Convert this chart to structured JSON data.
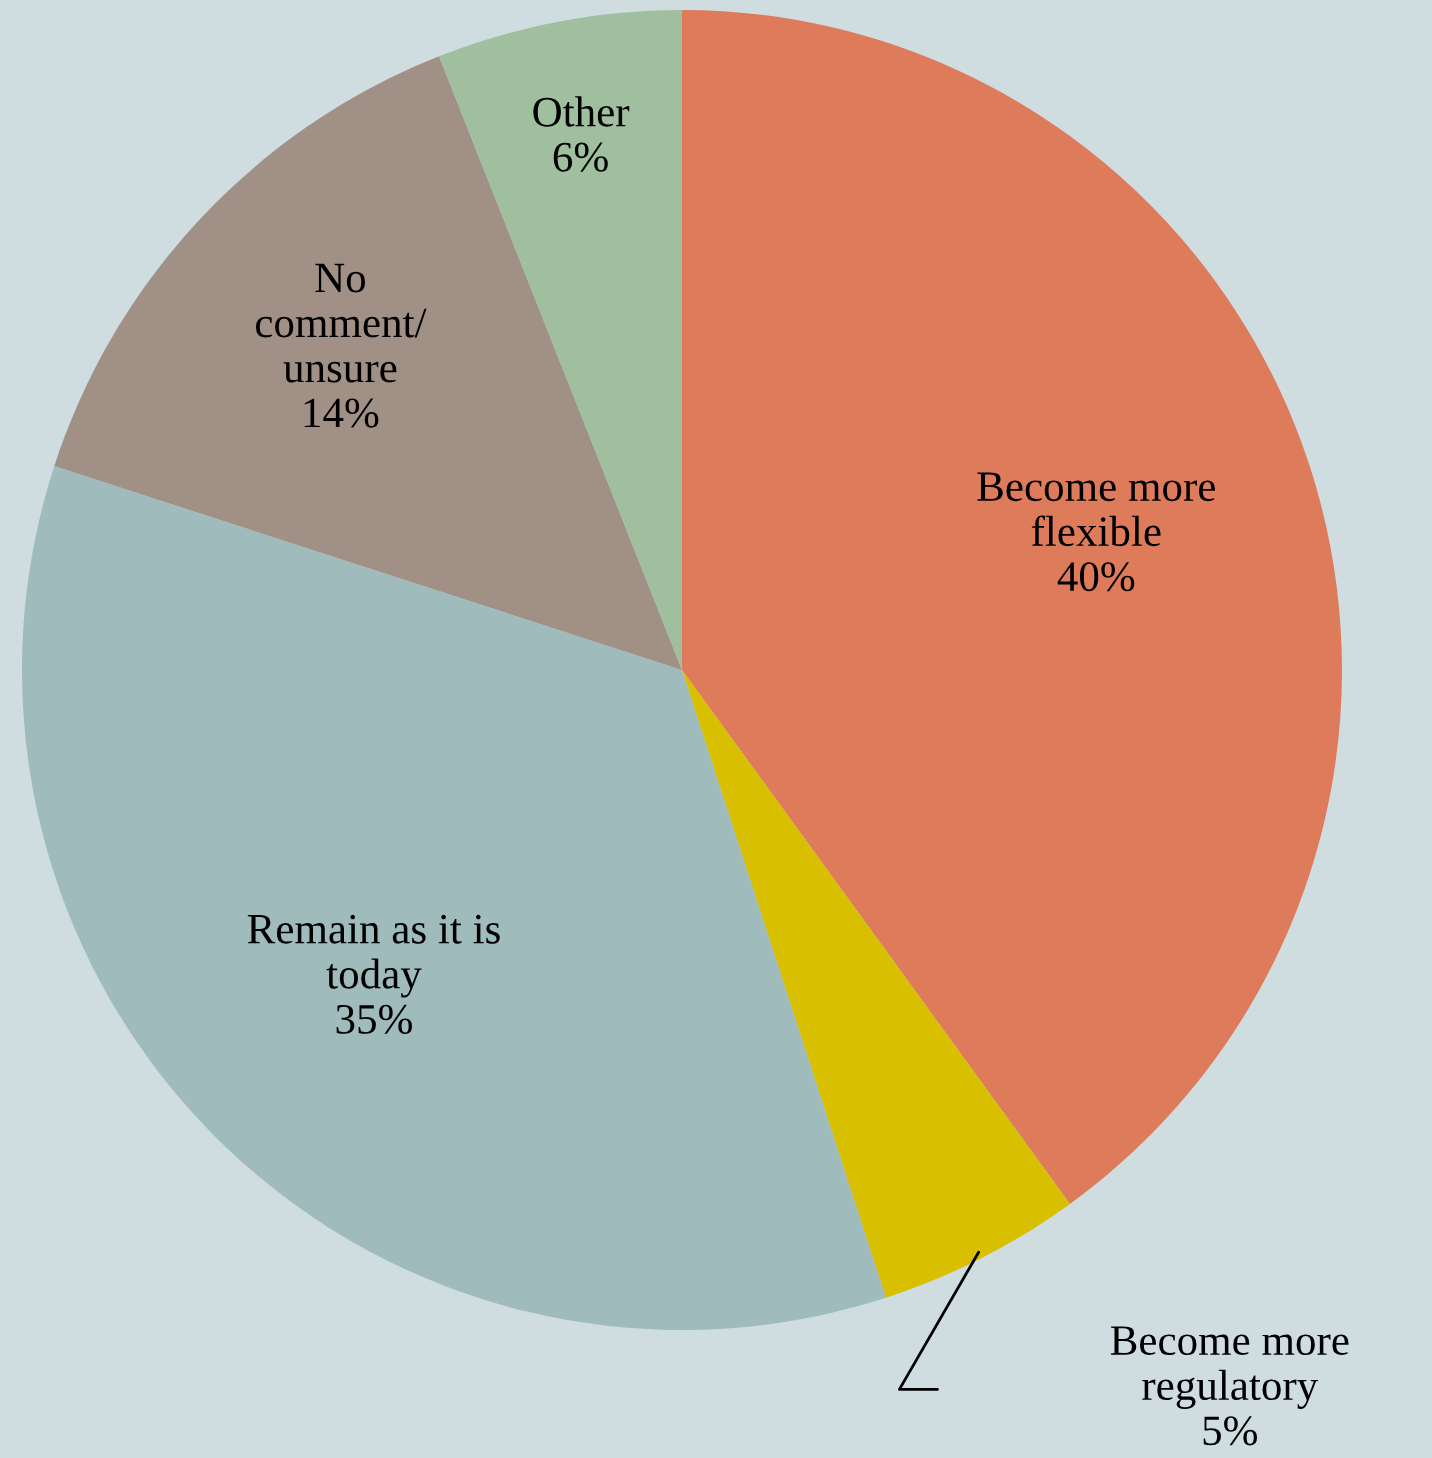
{
  "chart_data": {
    "type": "pie",
    "categories": [
      "Become more\nflexible",
      "Become more\nregulatory",
      "Remain as it is\ntoday",
      "No\ncomment/\nunsure",
      "Other"
    ],
    "values": [
      40,
      5,
      35,
      14,
      6
    ],
    "value_labels": [
      "40%",
      "5%",
      "35%",
      "14%",
      "6%"
    ],
    "colors": [
      "#dd7b5b",
      "#d8bf00",
      "#9fbbbb",
      "#a09085",
      "#9fbf9f"
    ],
    "legend": false
  }
}
